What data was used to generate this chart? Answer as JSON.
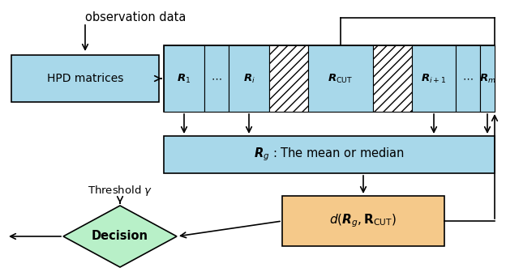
{
  "bg_color": "#ffffff",
  "box_blue": "#A8D8EA",
  "box_orange": "#F5C98A",
  "box_green": "#B8F0C8",
  "arrow_color": "#000000",
  "obs_text": "observation data",
  "hpd_text": "HPD matrices",
  "mean_text": "$\\boldsymbol{R}_g$ : The mean or median",
  "dist_text": "$d(\\boldsymbol{R}_g, \\mathbf{R}_{\\mathrm{CUT}})$",
  "decision_text": "Decision",
  "threshold_text": "Threshold $\\gamma$"
}
